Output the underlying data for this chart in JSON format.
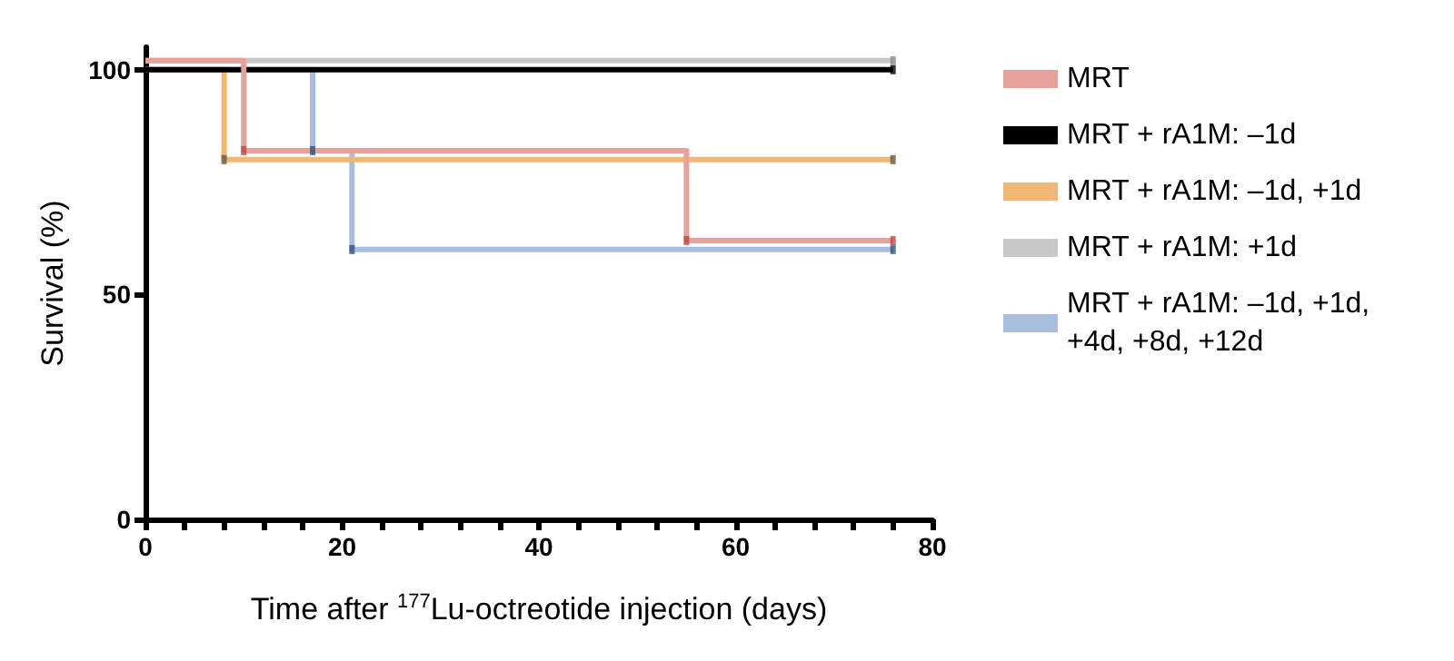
{
  "chart_data": {
    "type": "step",
    "xlabel": "Time after $^{177}$Lu-octreotide injection (days)",
    "ylabel": "Survival (%)",
    "xlim": [
      0,
      80
    ],
    "xticks": [
      0,
      {
        "value": 4,
        "label": null
      },
      {
        "value": 8,
        "label": null
      },
      {
        "value": 12,
        "label": null
      },
      {
        "value": 16,
        "label": null
      },
      20,
      {
        "value": 24,
        "label": null
      },
      {
        "value": 28,
        "label": null
      },
      {
        "value": 32,
        "label": null
      },
      {
        "value": 36,
        "label": null
      },
      40,
      {
        "value": 44,
        "label": null
      },
      {
        "value": 48,
        "label": null
      },
      {
        "value": 52,
        "label": null
      },
      {
        "value": 56,
        "label": null
      },
      60,
      {
        "value": 64,
        "label": null
      },
      {
        "value": 68,
        "label": null
      },
      {
        "value": 72,
        "label": null
      },
      {
        "value": 76,
        "label": null
      },
      80
    ],
    "ylim": [
      0,
      105
    ],
    "yticks": [
      0,
      50,
      100
    ],
    "grid": false,
    "legend": "right",
    "series": [
      {
        "name": "MRT",
        "color": "#e8a09a",
        "x": [
          0,
          10,
          55,
          76
        ],
        "values": [
          102,
          82,
          62,
          62
        ]
      },
      {
        "name": "MRT + rA1M: –1d",
        "color": "#000000",
        "x": [
          0,
          76
        ],
        "values": [
          100,
          100
        ]
      },
      {
        "name": "MRT + rA1M: –1d, +1d",
        "color": "#f0b874",
        "x": [
          0,
          8,
          76
        ],
        "values": [
          100,
          80,
          80
        ]
      },
      {
        "name": "MRT + rA1M: +1d",
        "color": "#c8c8c8",
        "x": [
          0,
          76
        ],
        "values": [
          102,
          102
        ]
      },
      {
        "name": "MRT + rA1M: –1d, +1d, +4d, +8d, +12d",
        "color": "#a8bede",
        "x": [
          0,
          17,
          21,
          76
        ],
        "values": [
          100,
          82,
          60,
          60
        ]
      },
      {
        "type": "scatter",
        "marker": "square",
        "color": "#c0483f",
        "x": [
          10,
          55,
          76
        ],
        "values": [
          82,
          62,
          62
        ]
      },
      {
        "type": "scatter",
        "marker": "square",
        "color": "#000000",
        "x": [
          76
        ],
        "values": [
          100
        ]
      },
      {
        "type": "scatter",
        "marker": "square",
        "color": "#6b5a40",
        "x": [
          8,
          76
        ],
        "values": [
          80,
          80
        ]
      },
      {
        "type": "scatter",
        "marker": "square",
        "color": "#8c8c8c",
        "x": [
          76
        ],
        "values": [
          102
        ]
      },
      {
        "type": "scatter",
        "marker": "square",
        "color": "#2e5486",
        "x": [
          17,
          21,
          76
        ],
        "values": [
          82,
          60,
          60
        ]
      }
    ]
  }
}
